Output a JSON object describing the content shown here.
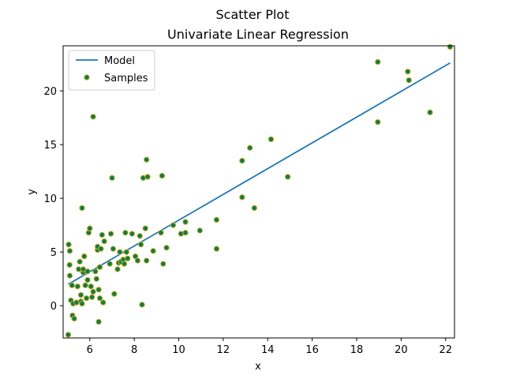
{
  "chart_data": {
    "type": "scatter",
    "suptitle": "Scatter Plot",
    "title": "Univariate Linear Regression",
    "xlabel": "x",
    "ylabel": "y",
    "xlim": [
      4.8,
      22.4
    ],
    "ylim": [
      -3,
      24.2
    ],
    "xticks": [
      6,
      8,
      10,
      12,
      14,
      16,
      18,
      20,
      22
    ],
    "yticks": [
      0,
      5,
      10,
      15,
      20
    ],
    "grid": false,
    "legend_position": "top-left",
    "legend": [
      "Model",
      "Samples"
    ],
    "colors": {
      "model_line": "#1f77b4",
      "sample_face": "#117a4a",
      "sample_edge": "#c9b227"
    },
    "series": [
      {
        "name": "Model",
        "kind": "line",
        "x": [
          5.03,
          22.2
        ],
        "y": [
          2.0,
          22.6
        ]
      },
      {
        "name": "Samples",
        "kind": "scatter",
        "points": [
          [
            5.03,
            -2.7
          ],
          [
            5.05,
            5.7
          ],
          [
            5.09,
            3.8
          ],
          [
            5.1,
            2.8
          ],
          [
            5.1,
            5.1
          ],
          [
            5.15,
            0.5
          ],
          [
            5.2,
            1.9
          ],
          [
            5.22,
            -0.9
          ],
          [
            5.25,
            0.2
          ],
          [
            5.3,
            -1.2
          ],
          [
            5.4,
            0.3
          ],
          [
            5.45,
            1.8
          ],
          [
            5.5,
            3.4
          ],
          [
            5.55,
            4.1
          ],
          [
            5.6,
            1.0
          ],
          [
            5.6,
            0.4
          ],
          [
            5.65,
            0.2
          ],
          [
            5.65,
            9.1
          ],
          [
            5.7,
            3.1
          ],
          [
            5.7,
            3.4
          ],
          [
            5.75,
            4.6
          ],
          [
            5.8,
            1.9
          ],
          [
            5.85,
            0.7
          ],
          [
            5.9,
            3.2
          ],
          [
            5.9,
            2.4
          ],
          [
            5.95,
            6.8
          ],
          [
            6.0,
            7.2
          ],
          [
            6.05,
            1.8
          ],
          [
            6.1,
            0.8
          ],
          [
            6.15,
            1.3
          ],
          [
            6.15,
            17.6
          ],
          [
            6.25,
            3.2
          ],
          [
            6.3,
            2.5
          ],
          [
            6.35,
            5.2
          ],
          [
            6.35,
            5.5
          ],
          [
            6.4,
            1.5
          ],
          [
            6.4,
            -1.5
          ],
          [
            6.45,
            3.6
          ],
          [
            6.45,
            0.7
          ],
          [
            6.5,
            5.3
          ],
          [
            6.55,
            6.6
          ],
          [
            6.6,
            0.3
          ],
          [
            6.65,
            6.0
          ],
          [
            6.9,
            3.9
          ],
          [
            6.95,
            6.7
          ],
          [
            7.0,
            11.9
          ],
          [
            7.05,
            5.3
          ],
          [
            7.1,
            1.1
          ],
          [
            7.25,
            3.4
          ],
          [
            7.3,
            4.0
          ],
          [
            7.35,
            5.0
          ],
          [
            7.4,
            4.1
          ],
          [
            7.5,
            4.3
          ],
          [
            7.55,
            3.9
          ],
          [
            7.6,
            6.8
          ],
          [
            7.65,
            5.0
          ],
          [
            7.7,
            4.4
          ],
          [
            7.9,
            6.7
          ],
          [
            8.05,
            4.6
          ],
          [
            8.15,
            4.2
          ],
          [
            8.25,
            6.5
          ],
          [
            8.3,
            5.7
          ],
          [
            8.35,
            0.1
          ],
          [
            8.4,
            11.9
          ],
          [
            8.5,
            7.2
          ],
          [
            8.55,
            4.2
          ],
          [
            8.55,
            13.6
          ],
          [
            8.6,
            12.0
          ],
          [
            8.85,
            5.1
          ],
          [
            9.2,
            6.8
          ],
          [
            9.25,
            12.1
          ],
          [
            9.3,
            3.9
          ],
          [
            9.45,
            5.4
          ],
          [
            9.75,
            7.5
          ],
          [
            10.1,
            6.7
          ],
          [
            10.3,
            6.8
          ],
          [
            10.3,
            7.8
          ],
          [
            10.95,
            7.0
          ],
          [
            11.7,
            8.0
          ],
          [
            11.7,
            5.3
          ],
          [
            12.85,
            10.1
          ],
          [
            12.85,
            13.5
          ],
          [
            13.2,
            14.7
          ],
          [
            13.4,
            9.1
          ],
          [
            14.15,
            15.5
          ],
          [
            14.9,
            12.0
          ],
          [
            18.95,
            22.7
          ],
          [
            18.95,
            17.1
          ],
          [
            20.3,
            21.8
          ],
          [
            20.35,
            21.0
          ],
          [
            21.3,
            18.0
          ],
          [
            22.2,
            24.1
          ]
        ]
      }
    ]
  }
}
